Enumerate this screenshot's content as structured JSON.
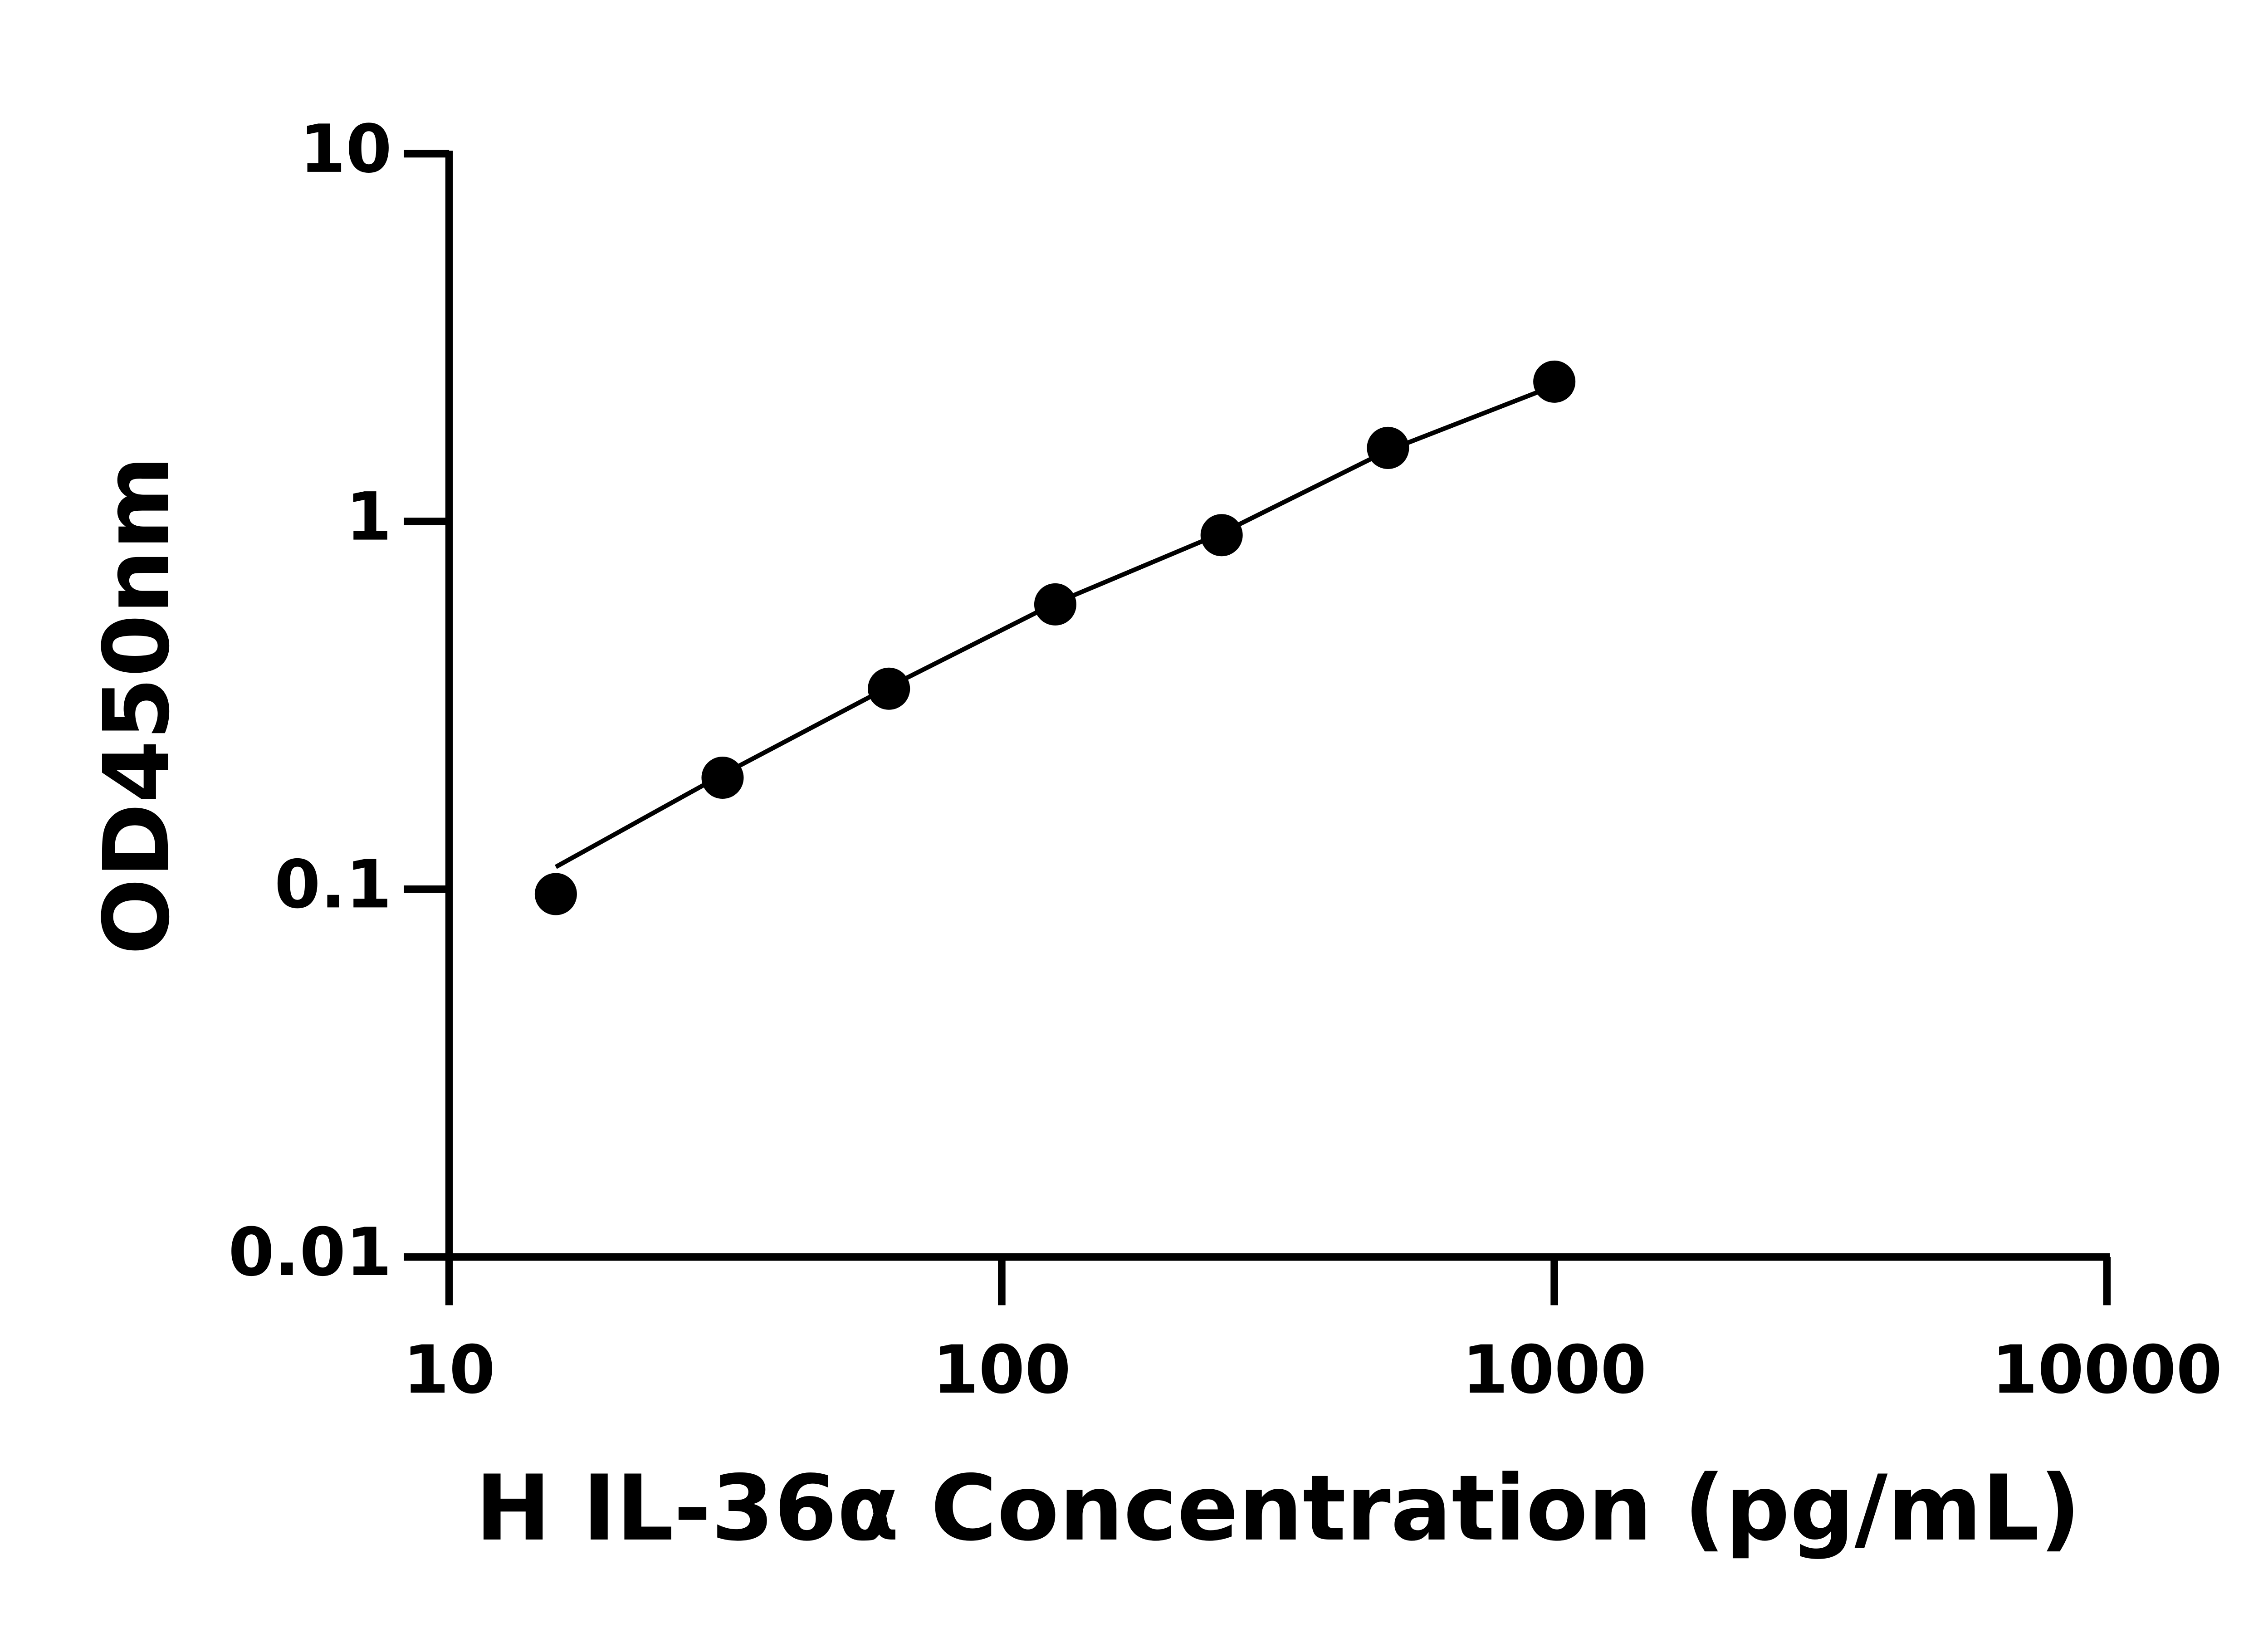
{
  "chart_data": {
    "type": "scatter",
    "x_label": "H IL-36α Concentration (pg/mL)",
    "y_label": "OD450nm",
    "x": [
      15.6,
      31.25,
      62.5,
      125,
      250,
      500,
      1000
    ],
    "values": [
      0.097,
      0.201,
      0.351,
      0.595,
      0.918,
      1.585,
      2.4
    ],
    "fit": {
      "x": [
        15.6,
        31.25,
        62.5,
        125,
        250,
        500,
        1000
      ],
      "values": [
        0.115,
        0.205,
        0.355,
        0.6,
        0.93,
        1.56,
        2.34
      ]
    },
    "color": "#000000",
    "x_log": true,
    "y_log": true,
    "xlim": [
      10,
      10000
    ],
    "xticks": [
      10,
      100,
      1000,
      10000
    ],
    "ylim": [
      0.01,
      10
    ],
    "yticks": [
      0.01,
      0.1,
      1,
      10
    ]
  }
}
